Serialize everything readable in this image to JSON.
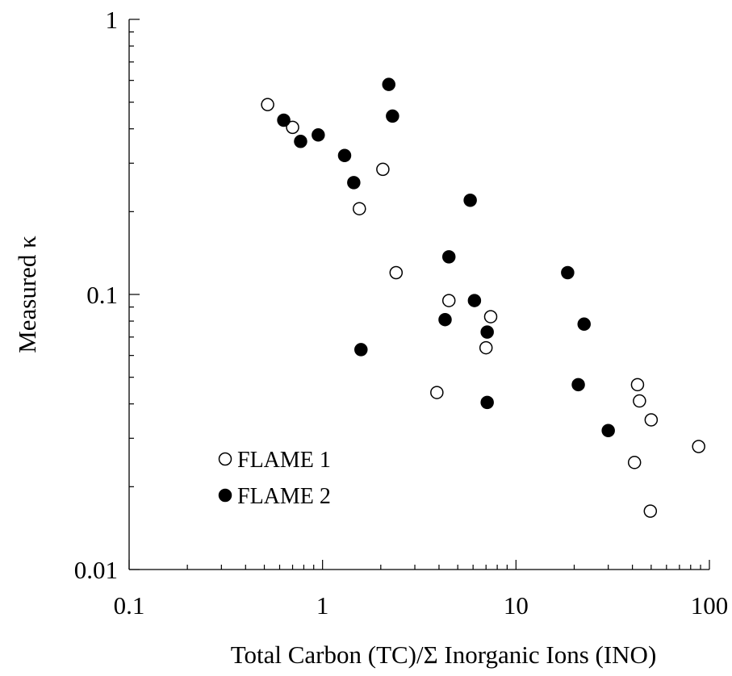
{
  "chart_data": {
    "type": "scatter",
    "title": "",
    "xlabel": "Total Carbon (TC)/Σ Inorganic Ions (INO)",
    "ylabel": "Measured κ",
    "xscale": "log",
    "yscale": "log",
    "xlim": [
      0.1,
      100
    ],
    "ylim": [
      0.01,
      1
    ],
    "xticks": [
      0.1,
      1,
      10,
      100
    ],
    "xtick_labels": [
      "0.1",
      "1",
      "10",
      "100"
    ],
    "yticks": [
      0.01,
      0.1,
      1
    ],
    "ytick_labels": [
      "0.01",
      "0.1",
      "1"
    ],
    "grid": false,
    "legend_position": "bottom-left",
    "series": [
      {
        "name": "FLAME 1",
        "marker": "open-circle",
        "color": "#000000",
        "points": [
          {
            "x": 0.52,
            "y": 0.49
          },
          {
            "x": 0.7,
            "y": 0.405
          },
          {
            "x": 2.05,
            "y": 0.285
          },
          {
            "x": 1.55,
            "y": 0.205
          },
          {
            "x": 2.4,
            "y": 0.12
          },
          {
            "x": 4.5,
            "y": 0.095
          },
          {
            "x": 7.4,
            "y": 0.083
          },
          {
            "x": 7.0,
            "y": 0.064
          },
          {
            "x": 3.9,
            "y": 0.044
          },
          {
            "x": 42.5,
            "y": 0.047
          },
          {
            "x": 43.5,
            "y": 0.041
          },
          {
            "x": 50.0,
            "y": 0.035
          },
          {
            "x": 88.0,
            "y": 0.028
          },
          {
            "x": 41.0,
            "y": 0.0245
          },
          {
            "x": 49.5,
            "y": 0.0163
          }
        ]
      },
      {
        "name": "FLAME 2",
        "marker": "filled-circle",
        "color": "#000000",
        "points": [
          {
            "x": 0.63,
            "y": 0.43
          },
          {
            "x": 0.77,
            "y": 0.36
          },
          {
            "x": 0.95,
            "y": 0.38
          },
          {
            "x": 1.3,
            "y": 0.32
          },
          {
            "x": 1.45,
            "y": 0.255
          },
          {
            "x": 2.2,
            "y": 0.58
          },
          {
            "x": 2.3,
            "y": 0.445
          },
          {
            "x": 5.8,
            "y": 0.22
          },
          {
            "x": 4.5,
            "y": 0.137
          },
          {
            "x": 6.1,
            "y": 0.095
          },
          {
            "x": 4.3,
            "y": 0.081
          },
          {
            "x": 7.1,
            "y": 0.073
          },
          {
            "x": 7.1,
            "y": 0.0405
          },
          {
            "x": 1.58,
            "y": 0.063
          },
          {
            "x": 18.5,
            "y": 0.12
          },
          {
            "x": 22.5,
            "y": 0.078
          },
          {
            "x": 21.0,
            "y": 0.047
          },
          {
            "x": 30.0,
            "y": 0.032
          }
        ]
      }
    ]
  }
}
